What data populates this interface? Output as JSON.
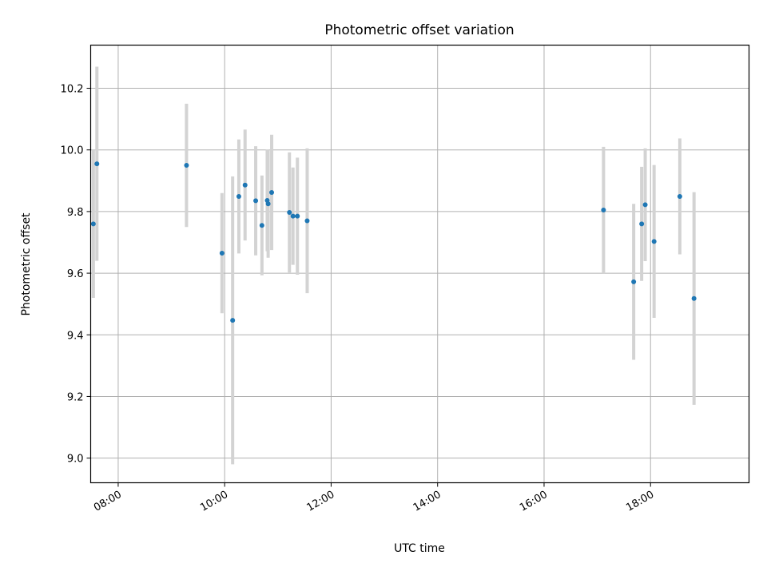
{
  "chart_data": {
    "type": "scatter",
    "title": "Photometric offset variation",
    "xlabel": "UTC time",
    "ylabel": "Photometric offset",
    "x_ticks": [
      "08:00",
      "10:00",
      "12:00",
      "14:00",
      "16:00",
      "18:00"
    ],
    "x_tick_values": [
      "08:00",
      "10:00",
      "12:00",
      "14:00",
      "16:00",
      "18:00"
    ],
    "y_ticks": [
      "9.0",
      "9.2",
      "9.4",
      "9.6",
      "9.8",
      "10.0",
      "10.2"
    ],
    "y_tick_values": [
      9.0,
      9.2,
      9.4,
      9.6,
      9.8,
      10.0,
      10.2
    ],
    "xlim": [
      "07:29",
      "19:51"
    ],
    "ylim": [
      8.92,
      10.34
    ],
    "grid": true,
    "x_tick_rotation": "30 degrees",
    "colors": {
      "points": "#1f77b4",
      "errorbars": "#d3d3d3",
      "grid": "#b0b0b0"
    },
    "series": [
      {
        "points": [
          {
            "x": "07:32",
            "y": 9.76,
            "err": 0.24
          },
          {
            "x": "07:36",
            "y": 9.955,
            "err": 0.315
          },
          {
            "x": "09:17",
            "y": 9.95,
            "err": 0.2
          },
          {
            "x": "09:57",
            "y": 9.665,
            "err": 0.195
          },
          {
            "x": "10:09",
            "y": 9.447,
            "err": 0.467
          },
          {
            "x": "10:16",
            "y": 9.849,
            "err": 0.185
          },
          {
            "x": "10:23",
            "y": 9.886,
            "err": 0.18
          },
          {
            "x": "10:35",
            "y": 9.835,
            "err": 0.177
          },
          {
            "x": "10:42",
            "y": 9.755,
            "err": 0.162
          },
          {
            "x": "10:48",
            "y": 9.836,
            "err": 0.165
          },
          {
            "x": "10:49",
            "y": 9.825,
            "err": 0.175
          },
          {
            "x": "10:53",
            "y": 9.862,
            "err": 0.187
          },
          {
            "x": "11:13",
            "y": 9.797,
            "err": 0.195
          },
          {
            "x": "11:17",
            "y": 9.785,
            "err": 0.158
          },
          {
            "x": "11:22",
            "y": 9.785,
            "err": 0.19
          },
          {
            "x": "11:33",
            "y": 9.77,
            "err": 0.235
          },
          {
            "x": "17:07",
            "y": 9.805,
            "err": 0.205
          },
          {
            "x": "17:41",
            "y": 9.572,
            "err": 0.253
          },
          {
            "x": "17:50",
            "y": 9.76,
            "err": 0.185
          },
          {
            "x": "17:54",
            "y": 9.822,
            "err": 0.183
          },
          {
            "x": "18:04",
            "y": 9.703,
            "err": 0.248
          },
          {
            "x": "18:33",
            "y": 9.849,
            "err": 0.188
          },
          {
            "x": "18:49",
            "y": 9.518,
            "err": 0.345
          }
        ]
      }
    ]
  }
}
